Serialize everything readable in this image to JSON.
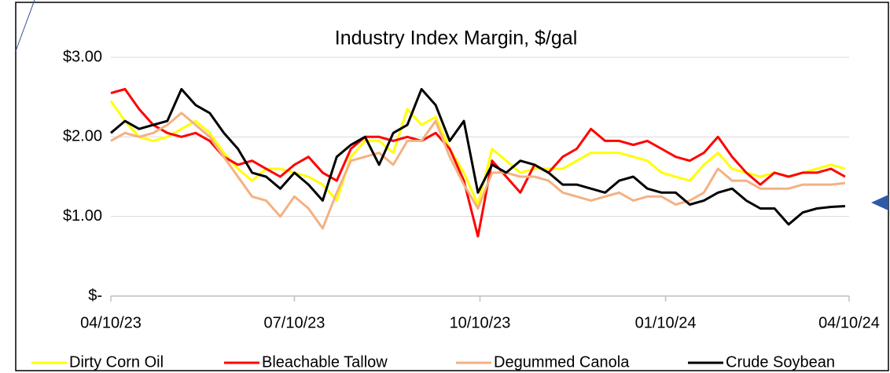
{
  "chart_data": {
    "type": "line",
    "title": "Industry Index Margin, $/gal",
    "x": [
      "2023-04-10",
      "2023-04-17",
      "2023-04-24",
      "2023-05-01",
      "2023-05-08",
      "2023-05-15",
      "2023-05-22",
      "2023-05-29",
      "2023-06-05",
      "2023-06-12",
      "2023-06-19",
      "2023-06-26",
      "2023-07-03",
      "2023-07-10",
      "2023-07-17",
      "2023-07-24",
      "2023-07-31",
      "2023-08-07",
      "2023-08-14",
      "2023-08-21",
      "2023-08-28",
      "2023-09-04",
      "2023-09-11",
      "2023-09-18",
      "2023-09-25",
      "2023-10-02",
      "2023-10-09",
      "2023-10-16",
      "2023-10-23",
      "2023-10-30",
      "2023-11-06",
      "2023-11-13",
      "2023-11-20",
      "2023-11-27",
      "2023-12-04",
      "2023-12-11",
      "2023-12-18",
      "2023-12-25",
      "2024-01-01",
      "2024-01-08",
      "2024-01-15",
      "2024-01-22",
      "2024-01-29",
      "2024-02-05",
      "2024-02-12",
      "2024-02-19",
      "2024-02-26",
      "2024-03-04",
      "2024-03-11",
      "2024-03-18",
      "2024-03-25",
      "2024-04-01",
      "2024-04-08"
    ],
    "series": [
      {
        "name": "Dirty Corn Oil",
        "color": "#ffff00",
        "values": [
          2.45,
          2.2,
          2.0,
          1.95,
          2.0,
          2.1,
          2.2,
          2.05,
          1.8,
          1.6,
          1.45,
          1.6,
          1.6,
          1.55,
          1.5,
          1.4,
          1.2,
          1.75,
          1.95,
          1.95,
          1.8,
          2.35,
          2.15,
          2.25,
          1.85,
          1.55,
          1.15,
          1.85,
          1.7,
          1.55,
          1.6,
          1.6,
          1.6,
          1.7,
          1.8,
          1.8,
          1.8,
          1.75,
          1.7,
          1.55,
          1.5,
          1.45,
          1.65,
          1.8,
          1.6,
          1.55,
          1.5,
          1.55,
          1.5,
          1.55,
          1.6,
          1.65,
          1.6
        ]
      },
      {
        "name": "Bleachable Tallow",
        "color": "#ff0000",
        "values": [
          2.55,
          2.6,
          2.35,
          2.15,
          2.05,
          2.0,
          2.05,
          1.95,
          1.75,
          1.65,
          1.7,
          1.6,
          1.5,
          1.65,
          1.75,
          1.55,
          1.45,
          1.85,
          2.0,
          2.0,
          1.95,
          2.0,
          1.95,
          2.05,
          1.85,
          1.45,
          0.75,
          1.7,
          1.5,
          1.3,
          1.65,
          1.55,
          1.75,
          1.85,
          2.1,
          1.95,
          1.95,
          1.9,
          1.95,
          1.85,
          1.75,
          1.7,
          1.8,
          2.0,
          1.75,
          1.55,
          1.4,
          1.55,
          1.5,
          1.55,
          1.55,
          1.6,
          1.5
        ]
      },
      {
        "name": "Degummed Canola",
        "color": "#f4b183",
        "values": [
          1.95,
          2.05,
          2.0,
          2.05,
          2.15,
          2.3,
          2.15,
          2.0,
          1.75,
          1.5,
          1.25,
          1.2,
          1.0,
          1.25,
          1.1,
          0.85,
          1.3,
          1.7,
          1.75,
          1.8,
          1.65,
          1.95,
          1.95,
          2.2,
          1.75,
          1.4,
          1.1,
          1.55,
          1.55,
          1.5,
          1.5,
          1.45,
          1.3,
          1.25,
          1.2,
          1.25,
          1.3,
          1.2,
          1.25,
          1.25,
          1.15,
          1.2,
          1.3,
          1.6,
          1.45,
          1.45,
          1.35,
          1.35,
          1.35,
          1.4,
          1.4,
          1.4,
          1.42
        ]
      },
      {
        "name": "Crude Soybean",
        "color": "#000000",
        "values": [
          2.05,
          2.2,
          2.1,
          2.15,
          2.2,
          2.6,
          2.4,
          2.3,
          2.05,
          1.85,
          1.55,
          1.5,
          1.35,
          1.55,
          1.4,
          1.2,
          1.75,
          1.9,
          2.0,
          1.65,
          2.05,
          2.15,
          2.6,
          2.4,
          1.95,
          2.2,
          1.3,
          1.65,
          1.55,
          1.7,
          1.65,
          1.55,
          1.4,
          1.4,
          1.35,
          1.3,
          1.45,
          1.5,
          1.35,
          1.3,
          1.3,
          1.15,
          1.2,
          1.3,
          1.35,
          1.2,
          1.1,
          1.1,
          0.9,
          1.05,
          1.1,
          1.12,
          1.13
        ]
      }
    ],
    "xlim": [
      "2023-04-10",
      "2024-04-10"
    ],
    "xticks": [
      {
        "value": "2023-04-10",
        "label": "04/10/23"
      },
      {
        "value": "2023-07-10",
        "label": "07/10/23"
      },
      {
        "value": "2023-10-10",
        "label": "10/10/23"
      },
      {
        "value": "2024-01-10",
        "label": "01/10/24"
      },
      {
        "value": "2024-04-10",
        "label": "04/10/24"
      }
    ],
    "ylim": [
      0,
      3
    ],
    "yticks": [
      {
        "value": 0,
        "label": "$-"
      },
      {
        "value": 1,
        "label": "$1.00"
      },
      {
        "value": 2,
        "label": "$2.00"
      },
      {
        "value": 3,
        "label": "$3.00"
      }
    ],
    "grid": true,
    "legend": "bottom"
  }
}
